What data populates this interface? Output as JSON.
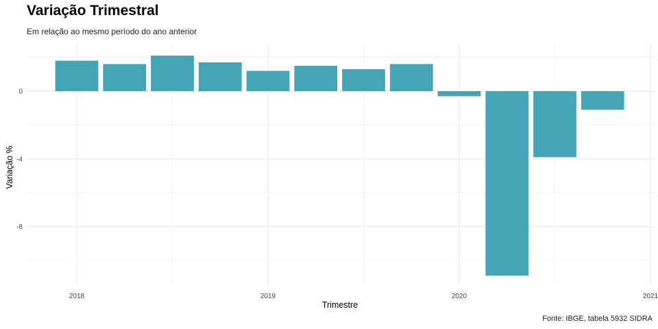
{
  "chart_data": {
    "type": "bar",
    "title": "Variação Trimestral",
    "subtitle": "Em relação ao mesmo período do ano anterior",
    "xlabel": "Trimestre",
    "ylabel": "Variação %",
    "caption": "Fonte: IBGE, tabela 5932 SIDRA",
    "categories": [
      "2018-Q1",
      "2018-Q2",
      "2018-Q3",
      "2018-Q4",
      "2019-Q1",
      "2019-Q2",
      "2019-Q3",
      "2019-Q4",
      "2020-Q1",
      "2020-Q2",
      "2020-Q3",
      "2020-Q4"
    ],
    "x": [
      2018.0,
      2018.25,
      2018.5,
      2018.75,
      2019.0,
      2019.25,
      2019.5,
      2019.75,
      2020.0,
      2020.25,
      2020.5,
      2020.75
    ],
    "values": [
      1.8,
      1.6,
      2.1,
      1.7,
      1.2,
      1.5,
      1.3,
      1.6,
      -0.3,
      -10.9,
      -3.9,
      -1.1
    ],
    "xticks": [
      "2018",
      "2019",
      "2020",
      "2021"
    ],
    "xtick_values": [
      2018,
      2019,
      2020,
      2021
    ],
    "yticks": [
      "-8",
      "-4",
      "0"
    ],
    "ytick_values": [
      -8,
      -4,
      0
    ],
    "xlim": [
      2017.75,
      2021.0
    ],
    "ylim": [
      -11.4,
      2.5
    ],
    "grid": true,
    "bar_color": "#45A5B4",
    "grid_color": "#EBEBEB"
  }
}
